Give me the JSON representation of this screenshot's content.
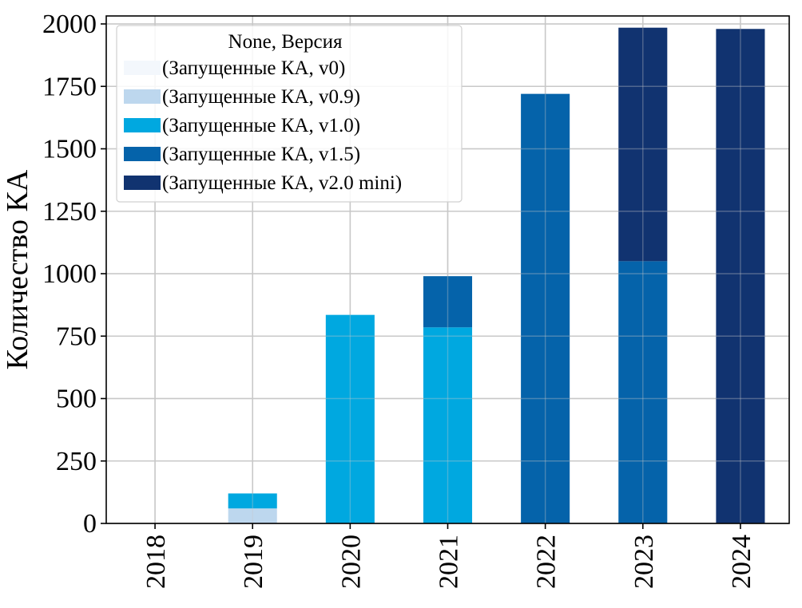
{
  "chart_data": {
    "type": "bar",
    "stacked": true,
    "categories": [
      "2018",
      "2019",
      "2020",
      "2021",
      "2022",
      "2023",
      "2024"
    ],
    "series": [
      {
        "name": "(Запущенные КА, v0)",
        "color": "#f3f7fc",
        "values": [
          0,
          0,
          0,
          0,
          0,
          0,
          0
        ]
      },
      {
        "name": "(Запущенные КА, v0.9)",
        "color": "#bdd7ee",
        "values": [
          0,
          60,
          0,
          0,
          0,
          0,
          0
        ]
      },
      {
        "name": "(Запущенные КА, v1.0)",
        "color": "#00a8e0",
        "values": [
          0,
          60,
          835,
          785,
          0,
          0,
          0
        ]
      },
      {
        "name": "(Запущенные КА, v1.5)",
        "color": "#0563aa",
        "values": [
          0,
          0,
          0,
          205,
          1720,
          1050,
          0
        ]
      },
      {
        "name": "(Запущенные КА, v2.0 mini)",
        "color": "#113370",
        "values": [
          0,
          0,
          0,
          0,
          0,
          935,
          1980
        ]
      }
    ],
    "legend_title": "None, Версия",
    "legend_position": "top-left",
    "xlabel": "",
    "ylabel": "Количество КА",
    "ylim": [
      0,
      2000
    ],
    "yticks": [
      "0",
      "250",
      "500",
      "750",
      "1000",
      "1250",
      "1500",
      "1750",
      "2000"
    ],
    "grid": true
  }
}
